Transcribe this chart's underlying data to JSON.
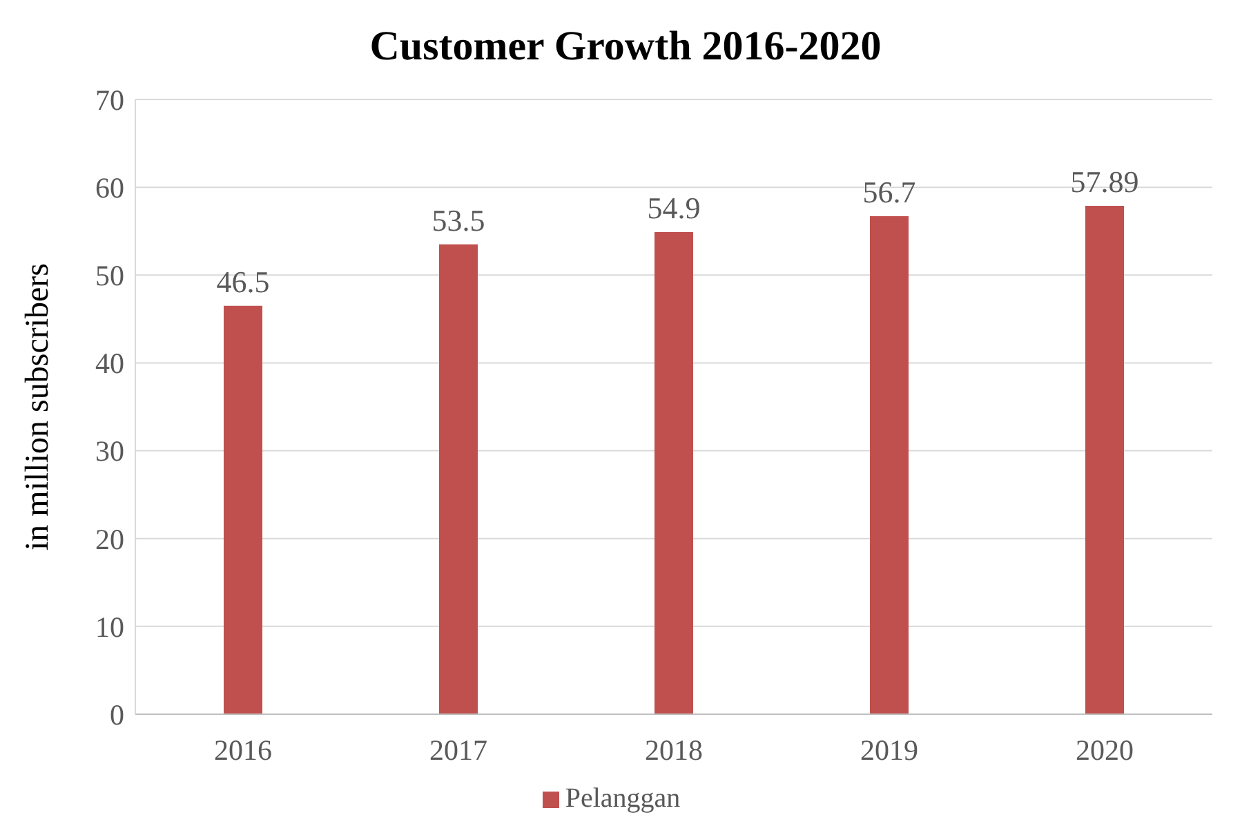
{
  "chart_data": {
    "type": "bar",
    "title": "Customer Growth 2016-2020",
    "ylabel": "in million subscribers",
    "categories": [
      "2016",
      "2017",
      "2018",
      "2019",
      "2020"
    ],
    "series": [
      {
        "name": "Pelanggan",
        "color": "#c0504d",
        "values": [
          46.5,
          53.5,
          54.9,
          56.7,
          57.89
        ]
      }
    ],
    "ylim": [
      0,
      70
    ],
    "yticks": [
      0,
      10,
      20,
      30,
      40,
      50,
      60,
      70
    ],
    "grid": "y",
    "legend": "bottom",
    "data_labels": true
  }
}
